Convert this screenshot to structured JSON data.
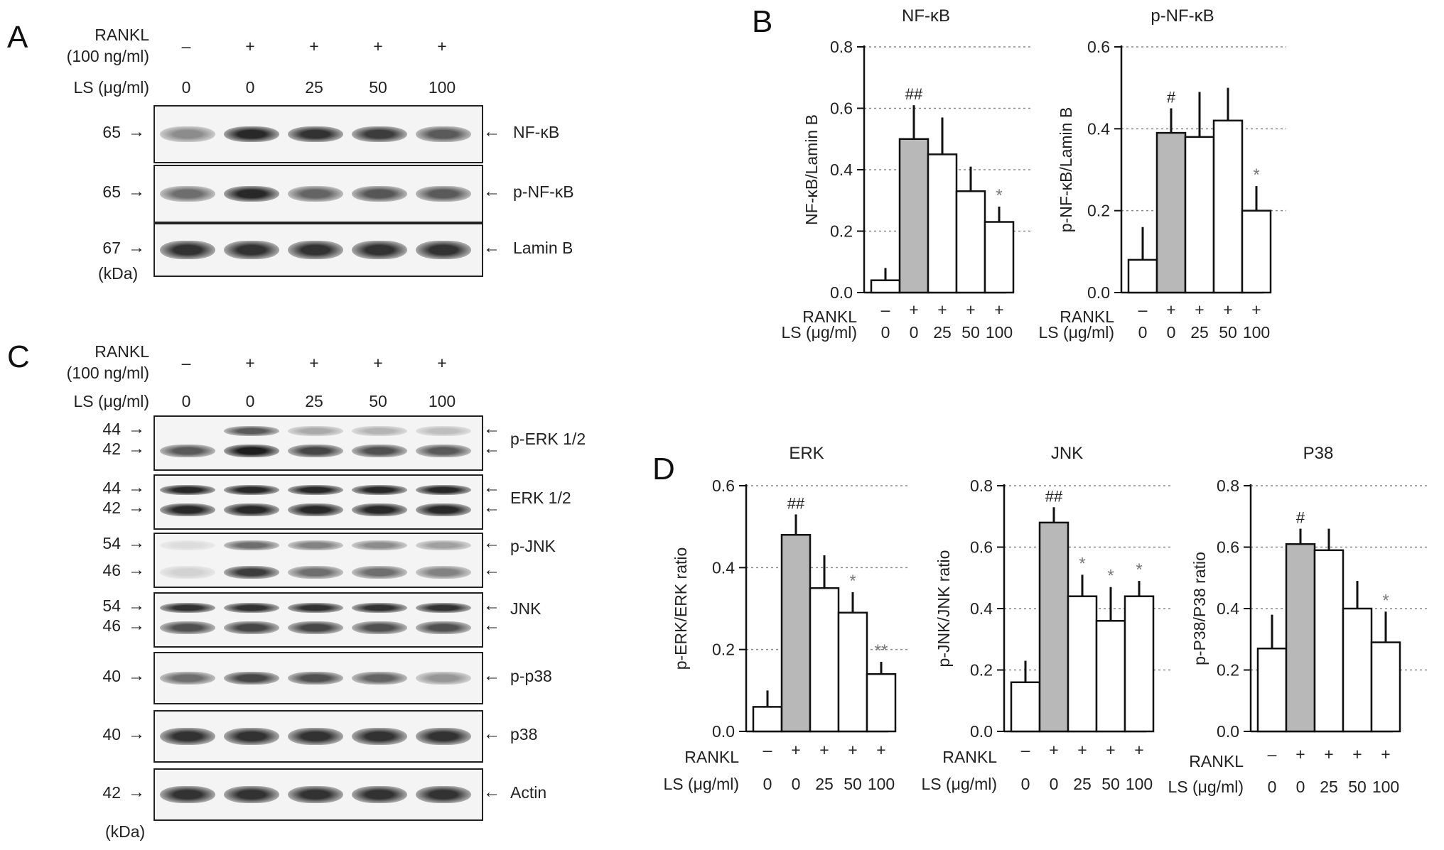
{
  "panelA": {
    "letter": "A",
    "rankl_label": "RANKL",
    "rankl_conc": "(100 ng/ml)",
    "ls_label": "LS (μg/ml)",
    "rankl_signs": [
      "–",
      "+",
      "+",
      "+",
      "+"
    ],
    "ls_doses": [
      "0",
      "0",
      "25",
      "50",
      "100"
    ],
    "blots": [
      {
        "mw": "65",
        "protein": "NF-κB"
      },
      {
        "mw": "65",
        "protein": "p-NF-κB"
      },
      {
        "mw": "67",
        "protein": "Lamin B"
      }
    ],
    "kda": "(kDa)"
  },
  "panelC": {
    "letter": "C",
    "rankl_label": "RANKL",
    "rankl_conc": "(100 ng/ml)",
    "ls_label": "LS (μg/ml)",
    "rankl_signs": [
      "–",
      "+",
      "+",
      "+",
      "+"
    ],
    "ls_doses": [
      "0",
      "0",
      "25",
      "50",
      "100"
    ],
    "blots": [
      {
        "mw_top": "44",
        "mw_bottom": "42",
        "protein": "p-ERK 1/2"
      },
      {
        "mw_top": "44",
        "mw_bottom": "42",
        "protein": "ERK 1/2"
      },
      {
        "mw_top": "54",
        "mw_bottom": "46",
        "protein": "p-JNK"
      },
      {
        "mw_top": "54",
        "mw_bottom": "46",
        "protein": "JNK"
      },
      {
        "mw": "40",
        "protein": "p-p38"
      },
      {
        "mw": "40",
        "protein": "p38"
      },
      {
        "mw": "42",
        "protein": "Actin"
      }
    ],
    "kda": "(kDa)"
  },
  "panelB": {
    "letter": "B"
  },
  "panelD": {
    "letter": "D"
  },
  "x_axis": {
    "rankl_label": "RANKL",
    "ls_label": "LS (μg/ml)",
    "rankl_signs": [
      "–",
      "+",
      "+",
      "+",
      "+"
    ],
    "ls_doses": [
      "0",
      "0",
      "25",
      "50",
      "100"
    ]
  },
  "colors": {
    "treated_bar": "#b8b8b8",
    "open_bar": "#ffffff",
    "annotation": "#777777"
  },
  "chart_data": [
    {
      "id": "B-left",
      "type": "bar",
      "title": "NF-κB",
      "ylabel": "NF-κB/Lamin B",
      "ylim": [
        0,
        0.8
      ],
      "yticks": [
        "0.0",
        "0.2",
        "0.4",
        "0.6",
        "0.8"
      ],
      "categories": [
        "0",
        "0",
        "25",
        "50",
        "100"
      ],
      "values": [
        0.04,
        0.5,
        0.45,
        0.33,
        0.23
      ],
      "errors": [
        0.04,
        0.11,
        0.12,
        0.08,
        0.05
      ],
      "annotations": [
        "",
        "##",
        "",
        "",
        "*"
      ],
      "highlight_index": 1,
      "grid": true
    },
    {
      "id": "B-right",
      "type": "bar",
      "title": "p-NF-κB",
      "ylabel": "p-NF-κB/Lamin B",
      "ylim": [
        0,
        0.6
      ],
      "yticks": [
        "0.0",
        "0.2",
        "0.4",
        "0.6"
      ],
      "categories": [
        "0",
        "0",
        "25",
        "50",
        "100"
      ],
      "values": [
        0.08,
        0.39,
        0.38,
        0.42,
        0.2
      ],
      "errors": [
        0.08,
        0.06,
        0.11,
        0.08,
        0.06
      ],
      "annotations": [
        "",
        "#",
        "",
        "",
        "*"
      ],
      "highlight_index": 1,
      "grid": true
    },
    {
      "id": "D-erk",
      "type": "bar",
      "title": "ERK",
      "ylabel": "p-ERK/ERK ratio",
      "ylim": [
        0,
        0.6
      ],
      "yticks": [
        "0.0",
        "0.2",
        "0.4",
        "0.6"
      ],
      "categories": [
        "0",
        "0",
        "25",
        "50",
        "100"
      ],
      "values": [
        0.06,
        0.48,
        0.35,
        0.29,
        0.14
      ],
      "errors": [
        0.04,
        0.05,
        0.08,
        0.05,
        0.03
      ],
      "annotations": [
        "",
        "##",
        "",
        "*",
        "**"
      ],
      "highlight_index": 1,
      "grid": true
    },
    {
      "id": "D-jnk",
      "type": "bar",
      "title": "JNK",
      "ylabel": "p-JNK/JNK ratio",
      "ylim": [
        0,
        0.8
      ],
      "yticks": [
        "0.0",
        "0.2",
        "0.4",
        "0.6",
        "0.8"
      ],
      "categories": [
        "0",
        "0",
        "25",
        "50",
        "100"
      ],
      "values": [
        0.16,
        0.68,
        0.44,
        0.36,
        0.44
      ],
      "errors": [
        0.07,
        0.05,
        0.07,
        0.11,
        0.05
      ],
      "annotations": [
        "",
        "##",
        "*",
        "*",
        "*"
      ],
      "highlight_index": 1,
      "grid": true
    },
    {
      "id": "D-p38",
      "type": "bar",
      "title": "P38",
      "ylabel": "p-P38/P38 ratio",
      "ylim": [
        0,
        0.8
      ],
      "yticks": [
        "0.0",
        "0.2",
        "0.4",
        "0.6",
        "0.8"
      ],
      "categories": [
        "0",
        "0",
        "25",
        "50",
        "100"
      ],
      "values": [
        0.27,
        0.61,
        0.59,
        0.4,
        0.29
      ],
      "errors": [
        0.11,
        0.05,
        0.07,
        0.09,
        0.1
      ],
      "annotations": [
        "",
        "#",
        "",
        "",
        "*"
      ],
      "highlight_index": 1,
      "grid": true
    }
  ]
}
